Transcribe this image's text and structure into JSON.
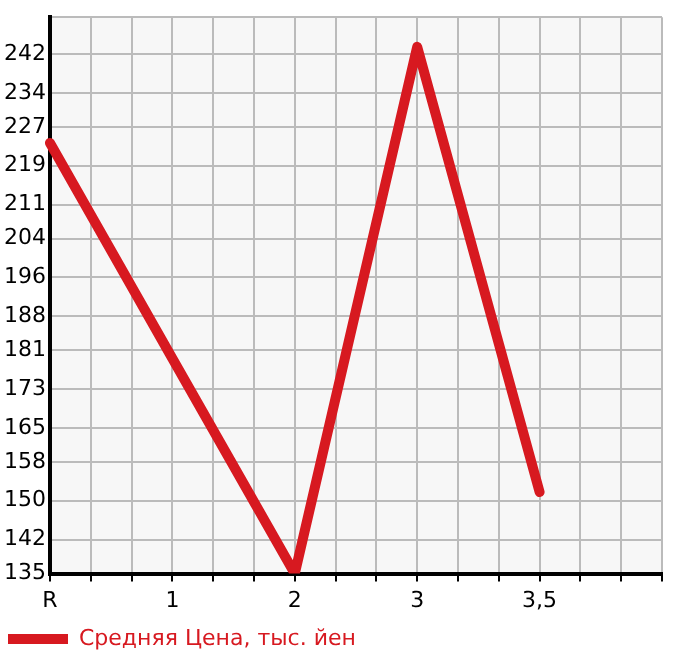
{
  "chart_data": {
    "type": "line",
    "categories": [
      "R",
      null,
      null,
      "1",
      null,
      null,
      "2",
      null,
      null,
      "3",
      null,
      null,
      "3,5",
      null,
      null,
      null
    ],
    "ylim": [
      135,
      249.6
    ],
    "yticks": [
      135,
      142,
      150,
      158,
      165,
      173,
      181,
      188,
      196,
      204,
      211,
      219,
      227,
      234,
      242,
      {
        "value": 249.6,
        "label": null
      }
    ],
    "series": [
      {
        "name": "Средняя Цена, тыс. йен",
        "color": "#d71920",
        "values": [
          223.7,
          null,
          null,
          179.3,
          null,
          null,
          135,
          null,
          null,
          243.5,
          null,
          null,
          151.8,
          null,
          null,
          null
        ]
      }
    ],
    "grid": true,
    "legend": "bottom left",
    "marker": "none",
    "line_style": "solid"
  }
}
